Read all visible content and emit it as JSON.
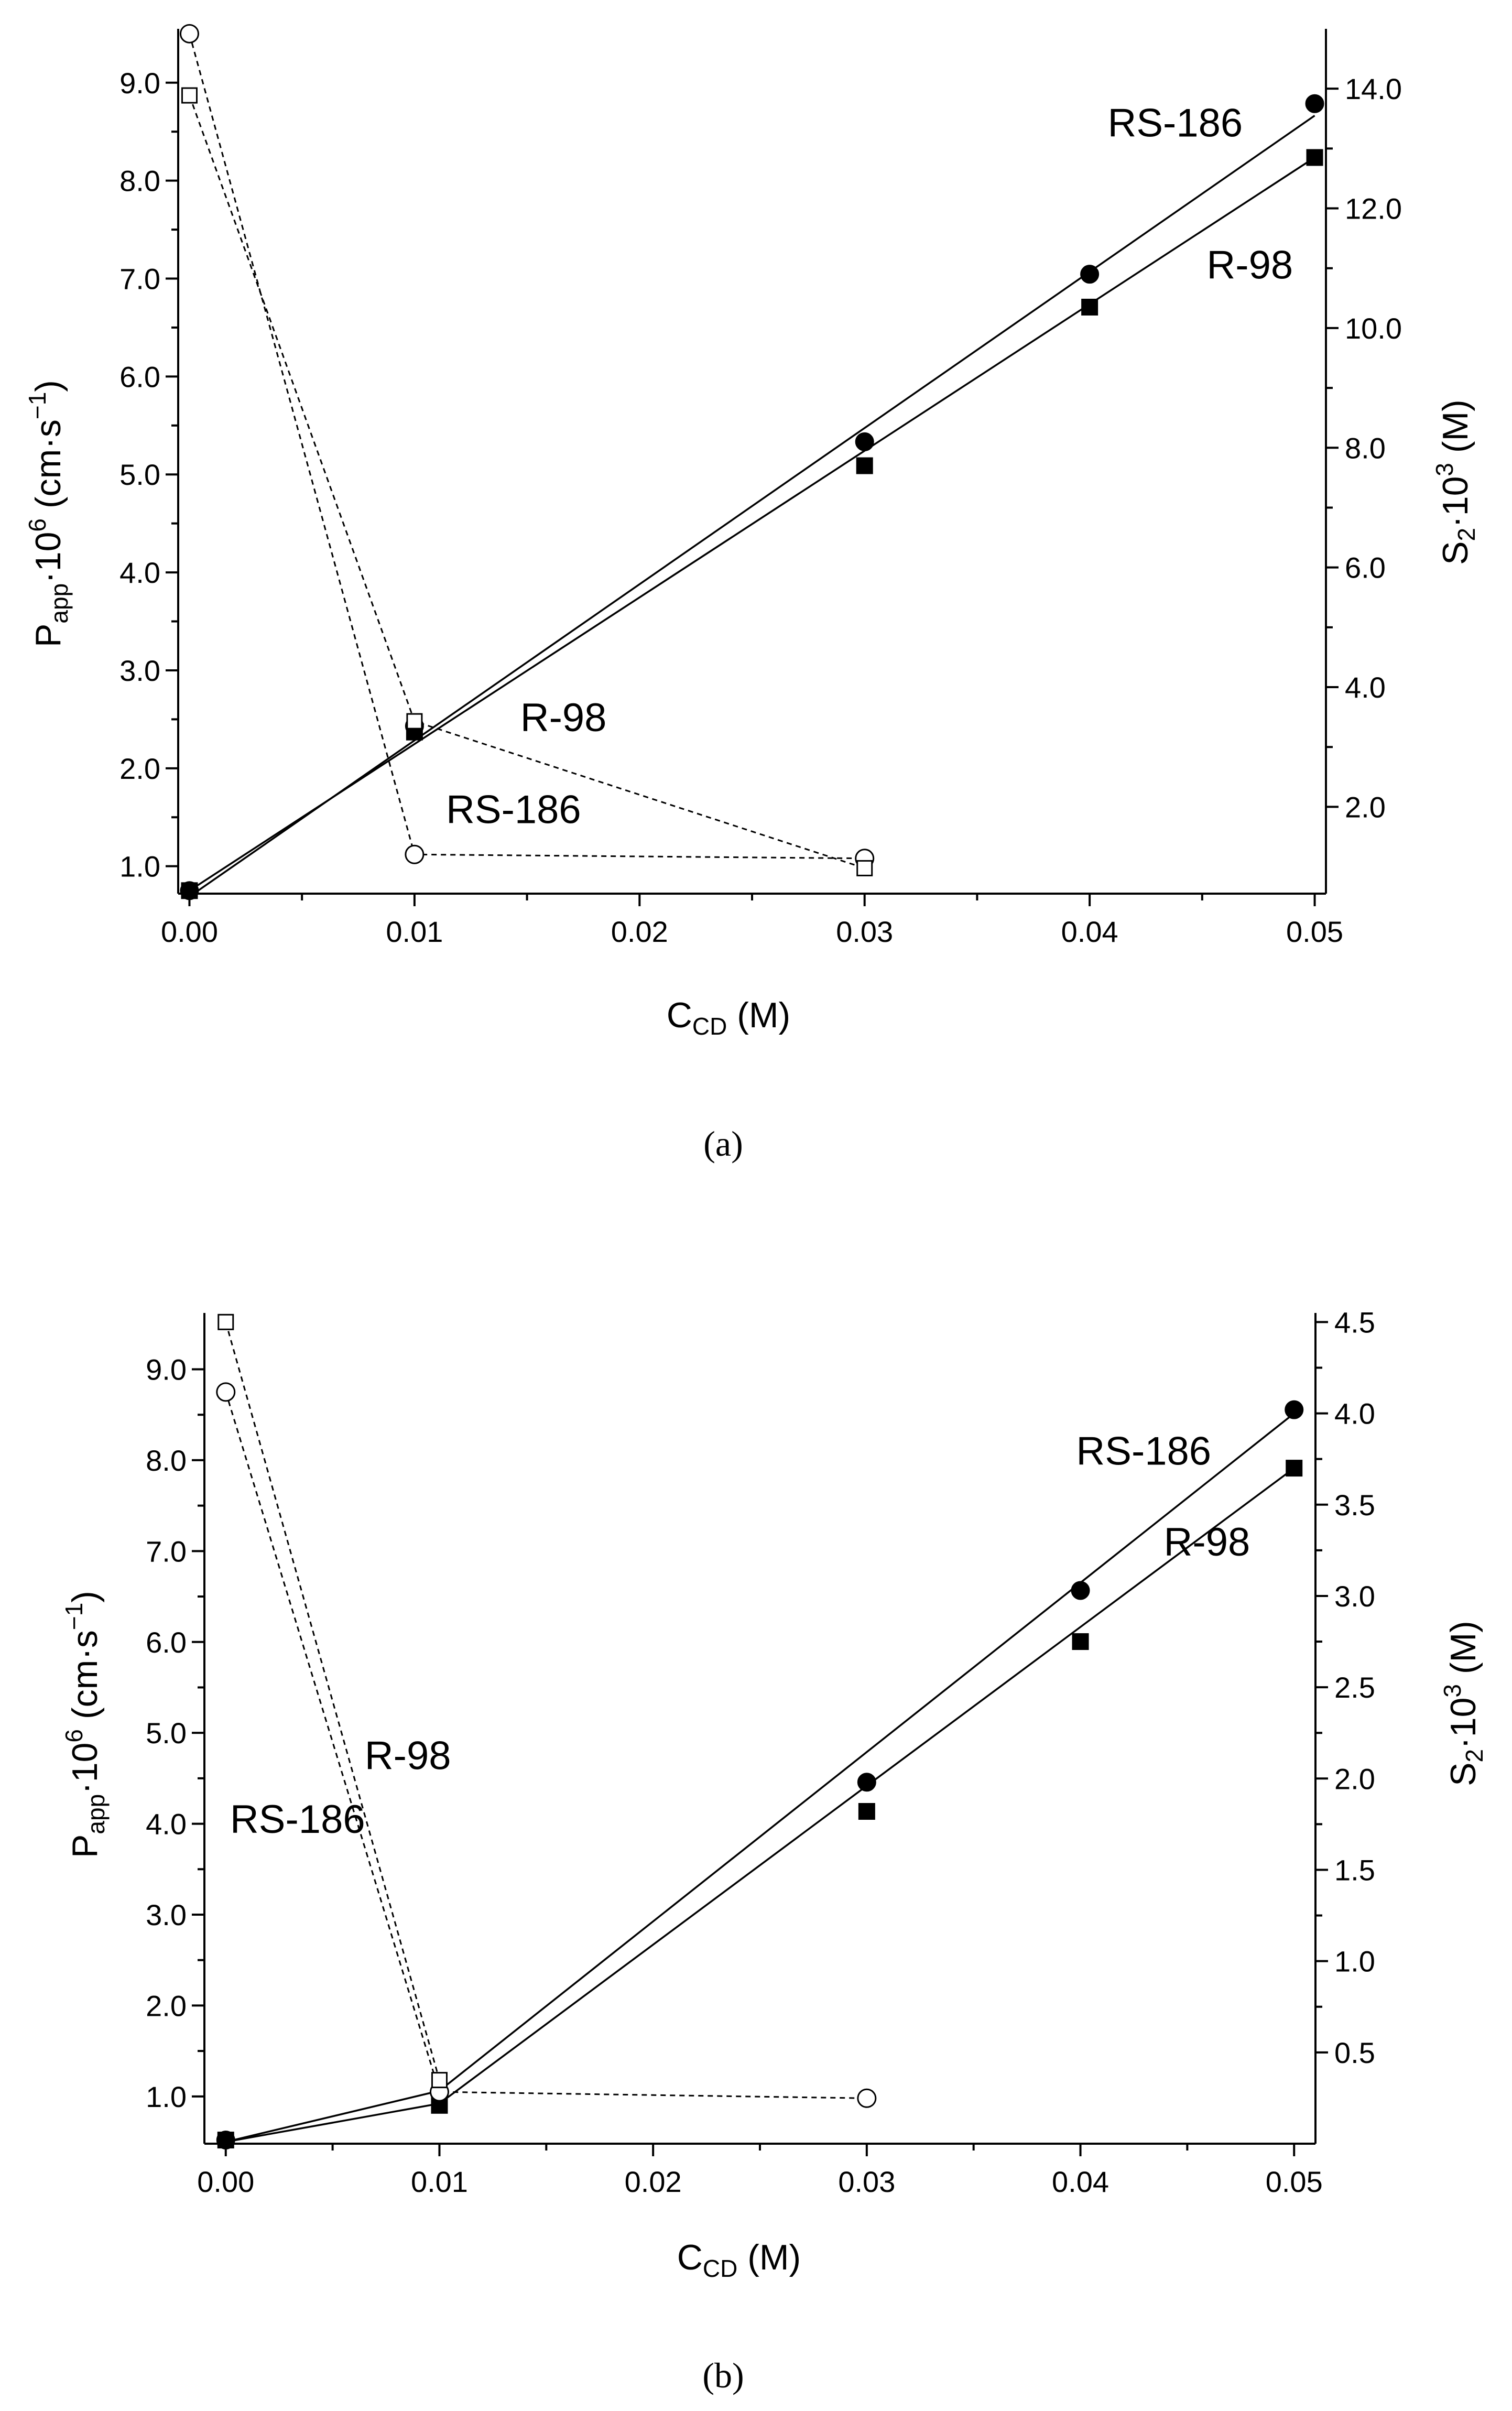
{
  "chart_data": [
    {
      "panel": "a",
      "caption": "(a)",
      "type": "line",
      "xlabel": "C_CD (M)",
      "xlabel_parts": {
        "main": "C",
        "sub": "CD",
        "rest": " (M)"
      },
      "ylabel_left_parts": {
        "p": "P",
        "sub": "app",
        "mid": "·10",
        "sup": "6",
        "rest": " (cm·s",
        "sup2": "−1",
        "end": ")"
      },
      "ylabel_right_parts": {
        "s": "S",
        "sub": "2",
        "mid": "·10",
        "sup": "3",
        "end": " (M)"
      },
      "xlim": [
        -0.0005,
        0.0505
      ],
      "ylim_left": [
        0.72,
        9.55
      ],
      "ylim_right": [
        0.55,
        15.0
      ],
      "x_ticks": [
        0.0,
        0.01,
        0.02,
        0.03,
        0.04,
        0.05
      ],
      "x_tick_labels": [
        "0.00",
        "0.01",
        "0.02",
        "0.03",
        "0.04",
        "0.05"
      ],
      "y_left_ticks": [
        1.0,
        2.0,
        3.0,
        4.0,
        5.0,
        6.0,
        7.0,
        8.0,
        9.0
      ],
      "y_left_tick_labels": [
        "1.0",
        "2.0",
        "3.0",
        "4.0",
        "5.0",
        "6.0",
        "7.0",
        "8.0",
        "9.0"
      ],
      "y_right_ticks": [
        2.0,
        4.0,
        6.0,
        8.0,
        10.0,
        12.0,
        14.0
      ],
      "y_right_tick_labels": [
        "2.0",
        "4.0",
        "6.0",
        "8.0",
        "10.0",
        "12.0",
        "14.0"
      ],
      "series": [
        {
          "name": "RS-186",
          "axis": "right",
          "marker": "filled-circle",
          "x": [
            0.0,
            0.01,
            0.03,
            0.04,
            0.05
          ],
          "y": [
            0.6,
            3.35,
            8.1,
            10.9,
            13.75
          ],
          "fit": [
            [
              0.0,
              0.5
            ],
            [
              0.05,
              13.55
            ]
          ]
        },
        {
          "name": "R-98",
          "axis": "right",
          "marker": "filled-square",
          "x": [
            0.0,
            0.01,
            0.03,
            0.04,
            0.05
          ],
          "y": [
            0.6,
            3.25,
            7.7,
            10.35,
            12.85
          ],
          "fit": [
            [
              0.0,
              0.6
            ],
            [
              0.05,
              12.85
            ]
          ]
        },
        {
          "name": "RS-186",
          "axis": "left",
          "marker": "open-circle",
          "x": [
            0.0,
            0.01,
            0.03
          ],
          "y": [
            9.5,
            1.12,
            1.08
          ]
        },
        {
          "name": "R-98",
          "axis": "left",
          "marker": "open-square",
          "x": [
            0.0,
            0.01,
            0.03
          ],
          "y": [
            8.87,
            2.48,
            0.98
          ]
        }
      ],
      "annotations": [
        {
          "text": "RS-186",
          "x": 0.0408,
          "y_left": 8.45
        },
        {
          "text": "R-98",
          "x": 0.0452,
          "y_left": 7.0
        },
        {
          "text": "R-98",
          "x": 0.0147,
          "y_left": 2.38
        },
        {
          "text": "RS-186",
          "x": 0.0114,
          "y_left": 1.44
        }
      ]
    },
    {
      "panel": "b",
      "caption": "(b)",
      "type": "line",
      "xlabel": "C_CD (M)",
      "xlabel_parts": {
        "main": "C",
        "sub": "CD",
        "rest": " (M)"
      },
      "ylabel_left_parts": {
        "p": "P",
        "sub": "app",
        "mid": "·10",
        "sup": "6",
        "rest": " (cm·s",
        "sup2": "−1",
        "end": ")"
      },
      "ylabel_right_parts": {
        "s": "S",
        "sub": "2",
        "mid": "·10",
        "sup": "3",
        "end": " (M)"
      },
      "xlim": [
        -0.001,
        0.051
      ],
      "ylim_left": [
        0.48,
        9.62
      ],
      "ylim_right": [
        0.0,
        4.55
      ],
      "x_ticks": [
        0.0,
        0.01,
        0.02,
        0.03,
        0.04,
        0.05
      ],
      "x_tick_labels": [
        "0.00",
        "0.01",
        "0.02",
        "0.03",
        "0.04",
        "0.05"
      ],
      "y_left_ticks": [
        1.0,
        2.0,
        3.0,
        4.0,
        5.0,
        6.0,
        7.0,
        8.0,
        9.0
      ],
      "y_left_tick_labels": [
        "1.0",
        "2.0",
        "3.0",
        "4.0",
        "5.0",
        "6.0",
        "7.0",
        "8.0",
        "9.0"
      ],
      "y_right_ticks": [
        0.5,
        1.0,
        1.5,
        2.0,
        2.5,
        3.0,
        3.5,
        4.0,
        4.5
      ],
      "y_right_tick_labels": [
        "0.5",
        "1.0",
        "1.5",
        "2.0",
        "2.5",
        "3.0",
        "3.5",
        "4.0",
        "4.5"
      ],
      "series": [
        {
          "name": "RS-186",
          "axis": "right",
          "marker": "filled-circle",
          "x": [
            0.0,
            0.01,
            0.03,
            0.04,
            0.05
          ],
          "y": [
            0.02,
            0.28,
            1.98,
            3.03,
            4.02
          ],
          "fit": [
            [
              0.0,
              0.01
            ],
            [
              0.01,
              0.29
            ],
            [
              0.05,
              4.0
            ]
          ]
        },
        {
          "name": "R-98",
          "axis": "right",
          "marker": "filled-square",
          "x": [
            0.0,
            0.01,
            0.03,
            0.04,
            0.05
          ],
          "y": [
            0.02,
            0.21,
            1.82,
            2.75,
            3.7
          ],
          "fit": [
            [
              0.0,
              0.01
            ],
            [
              0.01,
              0.22
            ],
            [
              0.05,
              3.7
            ]
          ]
        },
        {
          "name": "RS-186",
          "axis": "left",
          "marker": "open-circle",
          "x": [
            0.0,
            0.01,
            0.03
          ],
          "y": [
            8.75,
            1.05,
            0.98
          ]
        },
        {
          "name": "R-98",
          "axis": "left",
          "marker": "open-square",
          "x": [
            0.0,
            0.01
          ],
          "y": [
            9.52,
            1.18
          ]
        }
      ],
      "annotations": [
        {
          "text": "RS-186",
          "x": 0.0398,
          "y_left": 7.95
        },
        {
          "text": "R-98",
          "x": 0.0439,
          "y_left": 6.95
        },
        {
          "text": "R-98",
          "x": 0.0065,
          "y_left": 4.6
        },
        {
          "text": "RS-186",
          "x": 0.0002,
          "y_left": 3.9
        }
      ]
    }
  ]
}
